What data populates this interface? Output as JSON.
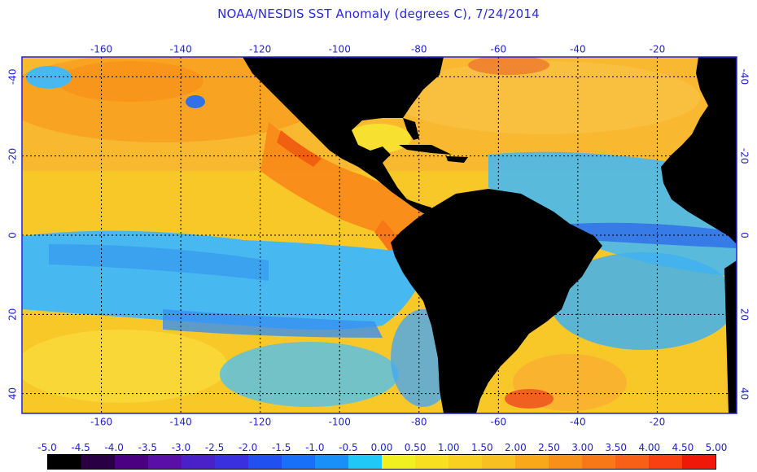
{
  "title": "NOAA/NESDIS SST Anomaly (degrees C), 7/24/2014",
  "map": {
    "type": "heatmap",
    "lon_range": [
      -180,
      0
    ],
    "lat_range": [
      -45,
      45
    ],
    "grid": true,
    "grid_lons": [
      -160,
      -140,
      -120,
      -100,
      -80,
      -60,
      -40,
      -20
    ],
    "grid_lats": [
      -40,
      -20,
      0,
      20,
      40
    ],
    "lon_tick_labels": [
      "-160",
      "-140",
      "-120",
      "-100",
      "-80",
      "-60",
      "-40",
      "-20"
    ],
    "lat_tick_labels": [
      "40",
      "20",
      "0",
      "-20",
      "-40"
    ],
    "land_color": "#000000",
    "frame_color": "#2222dd",
    "grid_color": "#000000"
  },
  "colorbar": {
    "labels": [
      "-5.0",
      "-4.5",
      "-4.0",
      "-3.5",
      "-3.0",
      "-2.5",
      "-2.0",
      "-1.5",
      "-1.0",
      "-0.5",
      "0.00",
      "0.50",
      "1.00",
      "1.50",
      "2.00",
      "2.50",
      "3.00",
      "3.50",
      "4.00",
      "4.50",
      "5.00"
    ],
    "colors": [
      "#000000",
      "#2a0044",
      "#4a0080",
      "#5a10a8",
      "#4a20c8",
      "#3a30e0",
      "#2050f0",
      "#1870f8",
      "#1890f8",
      "#20c8f8",
      "#f0f020",
      "#f8e020",
      "#f8d020",
      "#f8c020",
      "#f8a818",
      "#f89018",
      "#f87818",
      "#f86018",
      "#f84010",
      "#f01808"
    ]
  }
}
